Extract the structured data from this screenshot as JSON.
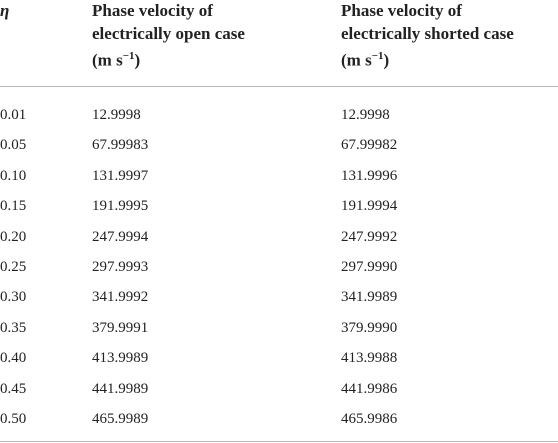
{
  "table": {
    "header": [
      {
        "lines": [
          "η"
        ]
      },
      {
        "lines": [
          "Phase velocity of",
          "electrically open case"
        ],
        "unit_open": "(m s",
        "exponent": "−1",
        "unit_close": ")"
      },
      {
        "lines": [
          "Phase velocity of",
          "electrically shorted case"
        ],
        "unit_open": "(m s",
        "exponent": "−1",
        "unit_close": ")"
      }
    ],
    "rows": [
      [
        "0.01",
        "12.9998",
        "12.9998"
      ],
      [
        "0.05",
        "67.99983",
        "67.99982"
      ],
      [
        "0.10",
        "131.9997",
        "131.9996"
      ],
      [
        "0.15",
        "191.9995",
        "191.9994"
      ],
      [
        "0.20",
        "247.9994",
        "247.9992"
      ],
      [
        "0.25",
        "297.9993",
        "297.9990"
      ],
      [
        "0.30",
        "341.9992",
        "341.9989"
      ],
      [
        "0.35",
        "379.9991",
        "379.9990"
      ],
      [
        "0.40",
        "413.9989",
        "413.9988"
      ],
      [
        "0.45",
        "441.9989",
        "441.9986"
      ],
      [
        "0.50",
        "465.9989",
        "465.9986"
      ]
    ]
  }
}
